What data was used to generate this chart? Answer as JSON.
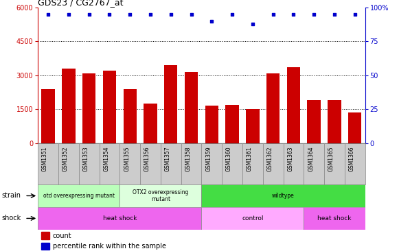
{
  "title": "GDS23 / CG2767_at",
  "samples": [
    "GSM1351",
    "GSM1352",
    "GSM1353",
    "GSM1354",
    "GSM1355",
    "GSM1356",
    "GSM1357",
    "GSM1358",
    "GSM1359",
    "GSM1360",
    "GSM1361",
    "GSM1362",
    "GSM1363",
    "GSM1364",
    "GSM1365",
    "GSM1366"
  ],
  "counts": [
    2400,
    3300,
    3100,
    3200,
    2400,
    1750,
    3450,
    3150,
    1650,
    1700,
    1500,
    3100,
    3350,
    1900,
    1900,
    1350
  ],
  "percentile": [
    95,
    95,
    95,
    95,
    95,
    95,
    95,
    95,
    90,
    95,
    88,
    95,
    95,
    95,
    95,
    95
  ],
  "ylim_left": [
    0,
    6000
  ],
  "ylim_right": [
    0,
    100
  ],
  "yticks_left": [
    0,
    1500,
    3000,
    4500,
    6000
  ],
  "yticks_right": [
    0,
    25,
    50,
    75,
    100
  ],
  "bar_color": "#cc0000",
  "dot_color": "#0000cc",
  "grid_color": "#000000",
  "strain_labels": [
    {
      "text": "otd overexpressing mutant",
      "start": 0,
      "end": 4,
      "color": "#bbffbb"
    },
    {
      "text": "OTX2 overexpressing\nmutant",
      "start": 4,
      "end": 8,
      "color": "#ddffdd"
    },
    {
      "text": "wildtype",
      "start": 8,
      "end": 16,
      "color": "#44dd44"
    }
  ],
  "shock_labels": [
    {
      "text": "heat shock",
      "start": 0,
      "end": 8,
      "color": "#ee66ee"
    },
    {
      "text": "control",
      "start": 8,
      "end": 13,
      "color": "#ffaaff"
    },
    {
      "text": "heat shock",
      "start": 13,
      "end": 16,
      "color": "#ee66ee"
    }
  ],
  "legend_count_color": "#cc0000",
  "legend_dot_color": "#0000cc",
  "xticklabel_bg": "#cccccc"
}
